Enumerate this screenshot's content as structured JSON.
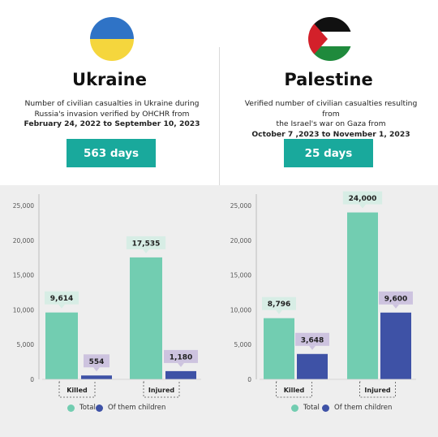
{
  "colors": {
    "total": "#72cdb1",
    "children": "#3e52a6",
    "total_label_bg": "#d7ede5",
    "children_label_bg": "#cdc3df",
    "days_bg": "#19a99c"
  },
  "legend": {
    "total": "Total",
    "children": "Of them children"
  },
  "ukraine": {
    "country": "Ukraine",
    "desc_line1": "Number of civilian casualties in Ukraine during",
    "desc_line2": "Russia's invasion verified by OHCHR from",
    "desc_dates": "February 24, 2022 to September 10, 2023",
    "days": "563 days"
  },
  "palestine": {
    "country": "Palestine",
    "desc_line1": "Verified number of civilian casualties resulting from",
    "desc_line2": "the Israel's war on Gaza from",
    "desc_dates": "October 7 ,2023 to November 1, 2023",
    "days": "25 days"
  },
  "chart_data": [
    {
      "type": "bar",
      "title": "",
      "categories": [
        "Killed",
        "Injured"
      ],
      "series": [
        {
          "name": "Total",
          "values": [
            9614,
            17535
          ],
          "labels": [
            "9,614",
            "17,535"
          ]
        },
        {
          "name": "Of them children",
          "values": [
            554,
            1180
          ],
          "labels": [
            "554",
            "1,180"
          ]
        }
      ],
      "yticks": [
        0,
        5000,
        10000,
        15000,
        20000,
        25000
      ],
      "ytick_labels": [
        "0",
        "5,000",
        "10,000",
        "15,000",
        "20,000",
        "25,000"
      ],
      "ylim": [
        0,
        27000
      ],
      "legend": "bottom"
    },
    {
      "type": "bar",
      "title": "",
      "categories": [
        "Killed",
        "Injured"
      ],
      "series": [
        {
          "name": "Total",
          "values": [
            8796,
            24000
          ],
          "labels": [
            "8,796",
            "24,000"
          ]
        },
        {
          "name": "Of them children",
          "values": [
            3648,
            9600
          ],
          "labels": [
            "3,648",
            "9,600"
          ]
        }
      ],
      "yticks": [
        0,
        5000,
        10000,
        15000,
        20000,
        25000
      ],
      "ytick_labels": [
        "0",
        "5,000",
        "10,000",
        "15,000",
        "20,000",
        "25,000"
      ],
      "ylim": [
        0,
        27000
      ],
      "legend": "bottom"
    }
  ]
}
